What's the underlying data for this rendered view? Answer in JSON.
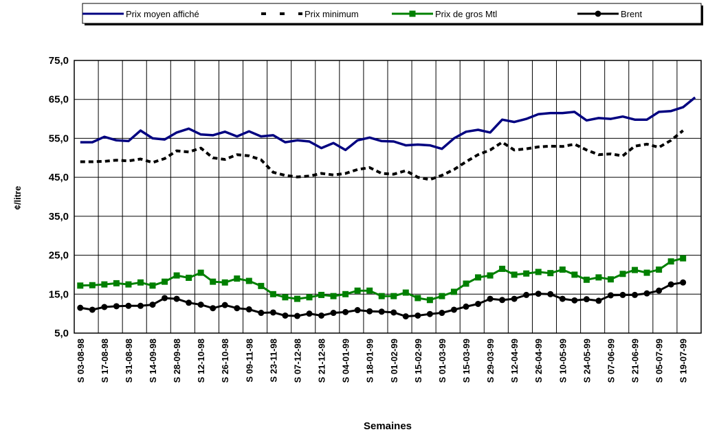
{
  "chart_data": {
    "type": "line",
    "x_label": "Semaines",
    "y_label": "¢/litre",
    "categories": [
      "S 03-08-98",
      null,
      "S 17-08-98",
      null,
      "S 31-08-98",
      null,
      "S 14-09-98",
      null,
      "S 28-09-98",
      null,
      "S 12-10-98",
      null,
      "S 26-10-98",
      null,
      "S 09-11-98",
      null,
      "S 23-11-98",
      null,
      "S 07-12-98",
      null,
      "S 21-12-98",
      null,
      "S 04-01-99",
      null,
      "S 18-01-99",
      null,
      "S 01-02-99",
      null,
      "S 15-02-99",
      null,
      "S 01-03-99",
      null,
      "S 15-03-99",
      null,
      "S 29-03-99",
      null,
      "S 12-04-99",
      null,
      "S 26-04-99",
      null,
      "S 10-05-99",
      null,
      "S 24-05-99",
      null,
      "S 07-06-99",
      null,
      "S 21-06-99",
      null,
      "S 05-07-99",
      null,
      "S 19-07-99",
      null
    ],
    "ylim": [
      5,
      75
    ],
    "yticks": [
      {
        "value": 5,
        "label": "5,0"
      },
      {
        "value": 15,
        "label": "15,0"
      },
      {
        "value": 25,
        "label": "25,0"
      },
      {
        "value": 35,
        "label": "35,0"
      },
      {
        "value": 45,
        "label": "45,0"
      },
      {
        "value": 55,
        "label": "55,0"
      },
      {
        "value": 65,
        "label": "65,0"
      },
      {
        "value": 75,
        "label": "75,0"
      }
    ],
    "grid": true,
    "legend": "top",
    "series": [
      {
        "name": "Prix moyen affiché",
        "color": "#000080",
        "style": "solid",
        "marker": "none",
        "values": [
          54.0,
          54.0,
          55.4,
          54.5,
          54.3,
          57.0,
          55.0,
          54.7,
          56.5,
          57.5,
          56.0,
          55.8,
          56.7,
          55.5,
          56.8,
          55.5,
          55.8,
          54.0,
          54.5,
          54.2,
          52.5,
          53.8,
          52.0,
          54.5,
          55.2,
          54.3,
          54.2,
          53.2,
          53.4,
          53.2,
          52.3,
          55.0,
          56.7,
          57.2,
          56.5,
          59.8,
          59.2,
          60.0,
          61.2,
          61.5,
          61.5,
          61.8,
          59.6,
          60.2,
          60.0,
          60.6,
          59.8,
          59.8,
          61.8,
          62.0,
          63.0,
          65.5
        ]
      },
      {
        "name": "Prix minimum",
        "color": "#000000",
        "style": "dashed",
        "marker": "none",
        "values": [
          49.0,
          49.0,
          49.1,
          49.4,
          49.2,
          49.7,
          48.8,
          49.8,
          51.8,
          51.5,
          52.5,
          50.0,
          49.6,
          50.8,
          50.5,
          49.5,
          46.3,
          45.5,
          45.1,
          45.3,
          46.0,
          45.6,
          46.0,
          47.0,
          47.5,
          46.0,
          45.8,
          46.7,
          45.0,
          44.4,
          45.5,
          47.0,
          49.0,
          50.8,
          52.0,
          54.0,
          52.0,
          52.3,
          52.8,
          53.0,
          52.9,
          53.5,
          52.0,
          50.8,
          51.0,
          50.5,
          53.0,
          53.5,
          52.7,
          54.5,
          57.0,
          null
        ]
      },
      {
        "name": "Prix de gros Mtl",
        "color": "#008000",
        "style": "solid",
        "marker": "square",
        "values": [
          17.2,
          17.3,
          17.5,
          17.8,
          17.5,
          18.0,
          17.2,
          18.2,
          19.8,
          19.2,
          20.5,
          18.2,
          18.0,
          19.0,
          18.4,
          17.1,
          15.0,
          14.2,
          13.8,
          14.2,
          14.8,
          14.5,
          15.0,
          15.9,
          15.9,
          14.5,
          14.5,
          15.4,
          14.0,
          13.5,
          14.5,
          15.6,
          17.7,
          19.3,
          19.8,
          21.5,
          20.0,
          20.3,
          20.7,
          20.4,
          21.3,
          20.0,
          18.7,
          19.3,
          18.8,
          20.2,
          21.2,
          20.5,
          21.3,
          23.4,
          24.2,
          null
        ]
      },
      {
        "name": "Brent",
        "color": "#000000",
        "style": "solid",
        "marker": "circle",
        "values": [
          11.5,
          11.0,
          11.7,
          11.9,
          12.0,
          12.0,
          12.3,
          14.0,
          13.8,
          12.8,
          12.3,
          11.4,
          12.2,
          11.4,
          11.1,
          10.2,
          10.3,
          9.5,
          9.4,
          10.0,
          9.5,
          10.2,
          10.4,
          10.9,
          10.6,
          10.5,
          10.3,
          9.3,
          9.5,
          9.9,
          10.2,
          11.0,
          11.8,
          12.5,
          13.8,
          13.5,
          13.8,
          14.8,
          15.1,
          15.0,
          13.8,
          13.4,
          13.7,
          13.3,
          14.7,
          14.8,
          14.8,
          15.2,
          15.9,
          17.5,
          18.0,
          null
        ]
      }
    ]
  }
}
